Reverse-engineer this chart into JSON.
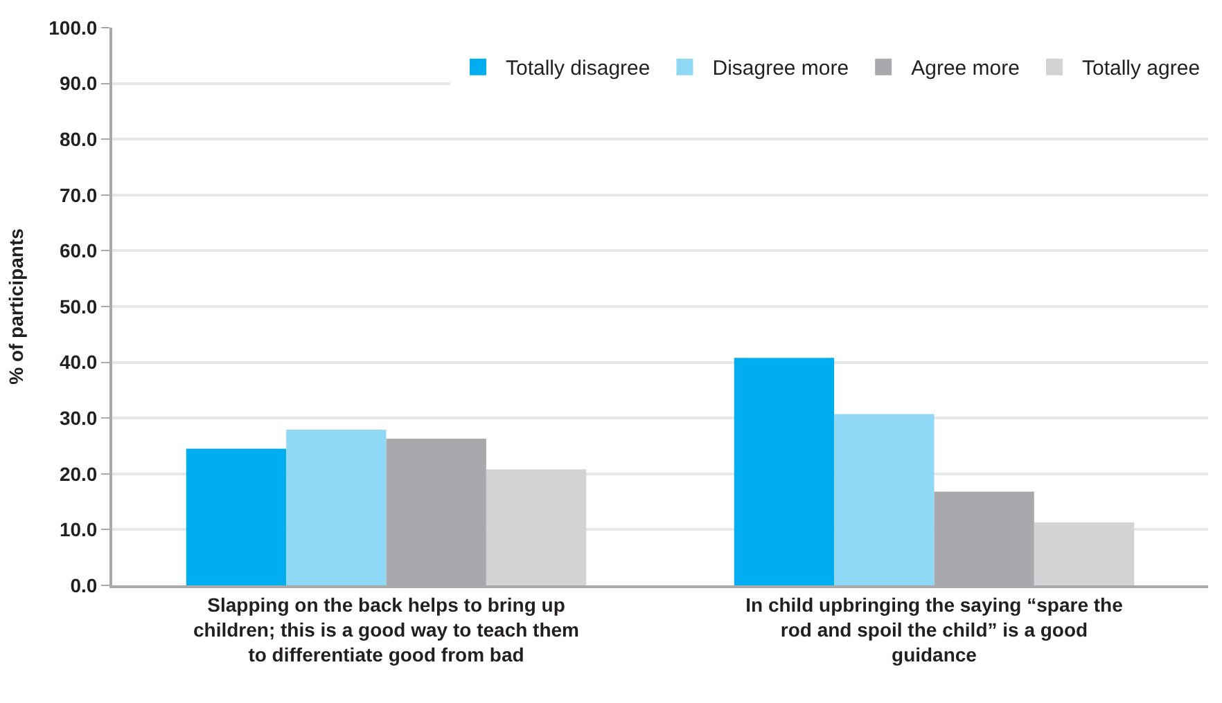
{
  "chart_data": {
    "type": "bar",
    "ylabel": "% of participants",
    "categories": [
      "Slapping on the back helps to bring up children; this is a good way to teach them to differentiate good from bad",
      "In child upbringing the saying “spare the rod and spoil the child” is a good guidance"
    ],
    "series": [
      {
        "name": "Totally disagree",
        "color": "#00aeef",
        "values": [
          24.5,
          40.8
        ]
      },
      {
        "name": "Disagree more",
        "color": "#8fd8f6",
        "values": [
          27.9,
          30.7
        ]
      },
      {
        "name": "Agree more",
        "color": "#a7a9ac",
        "values": [
          26.3,
          16.8
        ]
      },
      {
        "name": "Totally agree",
        "color": "#d1d3d4",
        "values": [
          20.8,
          11.3
        ]
      }
    ],
    "ylim": [
      0,
      100
    ],
    "yticks": [
      {
        "value": 0,
        "label": "0.0"
      },
      {
        "value": 10,
        "label": "10.0"
      },
      {
        "value": 20,
        "label": "20.0"
      },
      {
        "value": 30,
        "label": "30.0"
      },
      {
        "value": 40,
        "label": "40.0"
      },
      {
        "value": 50,
        "label": "50.0"
      },
      {
        "value": 60,
        "label": "60.0"
      },
      {
        "value": 70,
        "label": "70.0"
      },
      {
        "value": 80,
        "label": "80.0"
      },
      {
        "value": 90,
        "label": "90.0"
      },
      {
        "value": 100,
        "label": "100.0"
      }
    ],
    "grid": "y",
    "legend": "top right"
  }
}
